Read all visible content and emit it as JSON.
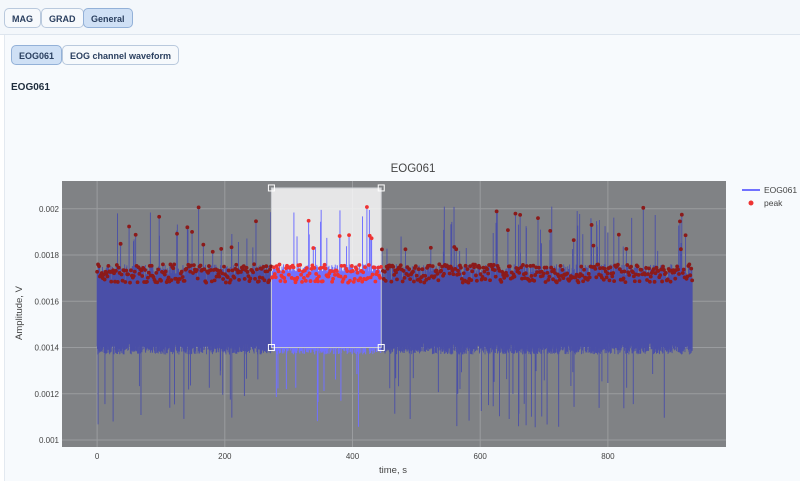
{
  "top_tabs": [
    {
      "label": "MAG",
      "active": false
    },
    {
      "label": "GRAD",
      "active": false
    },
    {
      "label": "General",
      "active": true
    }
  ],
  "sub_tabs": [
    {
      "label": "EOG061",
      "active": true
    },
    {
      "label": "EOG channel waveform",
      "active": false
    }
  ],
  "section_title": "EOG061",
  "colors": {
    "plot_bg": "#808285",
    "signal": "#4a4fa8",
    "signal_selected": "#7171ff",
    "peak": "#8b1a1a",
    "peak_selected": "#ee3333",
    "selection": "#ffffff"
  },
  "chart_data": {
    "type": "line",
    "title": "EOG061",
    "xlabel": "time, s",
    "ylabel": "Amplitude, V",
    "xlim": [
      -55,
      985
    ],
    "ylim": [
      0.00097,
      0.00212
    ],
    "x_ticks": [
      "0",
      "200",
      "400",
      "600",
      "800"
    ],
    "x_tick_values": [
      0,
      200,
      400,
      600,
      800
    ],
    "y_ticks": [
      "0.001",
      "0.0012",
      "0.0014",
      "0.0016",
      "0.0018",
      "0.002"
    ],
    "y_tick_values": [
      0.001,
      0.0012,
      0.0014,
      0.0016,
      0.0018,
      0.002
    ],
    "grid": true,
    "legend_position": "right",
    "series": [
      {
        "name": "EOG061",
        "kind": "line",
        "x_range": [
          0,
          932
        ],
        "typical_low": 0.00142,
        "typical_high": 0.0017
      },
      {
        "name": "peak",
        "kind": "scatter",
        "typical_low": 0.00162,
        "typical_high": 0.00183
      }
    ],
    "selection_box": {
      "x": [
        273,
        445
      ],
      "y": [
        0.0014,
        0.00209
      ]
    }
  }
}
